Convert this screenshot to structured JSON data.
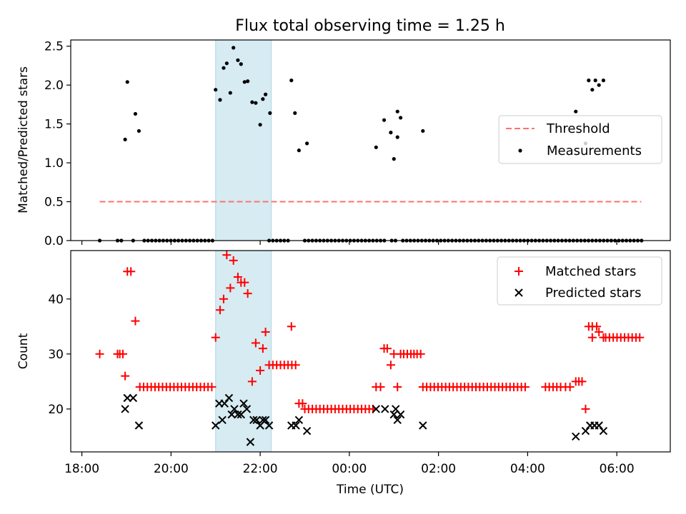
{
  "chart_data": [
    {
      "type": "scatter",
      "title": "Flux total observing time = 1.25 h",
      "xlabel": "",
      "ylabel": "Matched/Predicted stars",
      "ylim": [
        0,
        2.58
      ],
      "yticks": [
        0.0,
        0.5,
        1.0,
        1.5,
        2.0,
        2.5
      ],
      "ytick_labels": [
        "0.0",
        "0.5",
        "1.0",
        "1.5",
        "2.0",
        "2.5"
      ],
      "legend_position": "center-right",
      "highlight_span": {
        "x0": 21.0,
        "x1": 22.25,
        "color": "#add8e6"
      },
      "threshold": {
        "name": "Threshold",
        "x0": 18.4,
        "x1": 30.55,
        "y": 0.5,
        "color": "#ff7070",
        "style": "dashed"
      },
      "measurements": {
        "name": "Measurements",
        "color": "#000000",
        "nonzero": [
          [
            18.97,
            1.3
          ],
          [
            19.02,
            2.04
          ],
          [
            19.2,
            1.63
          ],
          [
            19.28,
            1.41
          ],
          [
            21.0,
            1.94
          ],
          [
            21.1,
            1.81
          ],
          [
            21.18,
            2.22
          ],
          [
            21.25,
            2.28
          ],
          [
            21.33,
            1.9
          ],
          [
            21.4,
            2.48
          ],
          [
            21.5,
            2.32
          ],
          [
            21.57,
            2.27
          ],
          [
            21.65,
            2.04
          ],
          [
            21.72,
            2.05
          ],
          [
            21.82,
            1.78
          ],
          [
            21.9,
            1.77
          ],
          [
            22.0,
            1.49
          ],
          [
            22.06,
            1.82
          ],
          [
            22.12,
            1.88
          ],
          [
            22.22,
            1.64
          ],
          [
            22.7,
            2.06
          ],
          [
            22.78,
            1.64
          ],
          [
            22.87,
            1.16
          ],
          [
            23.05,
            1.25
          ],
          [
            24.6,
            1.2
          ],
          [
            24.78,
            1.55
          ],
          [
            24.93,
            1.39
          ],
          [
            25.0,
            1.05
          ],
          [
            25.08,
            1.33
          ],
          [
            25.15,
            1.58
          ],
          [
            25.65,
            1.41
          ],
          [
            25.08,
            1.66
          ],
          [
            29.08,
            1.66
          ],
          [
            29.3,
            1.25
          ],
          [
            29.37,
            2.06
          ],
          [
            29.45,
            1.94
          ],
          [
            29.52,
            2.06
          ],
          [
            29.6,
            2.0
          ],
          [
            29.7,
            2.06
          ]
        ],
        "zero_ranges": [
          [
            18.4,
            18.4
          ],
          [
            18.8,
            18.95
          ],
          [
            19.15,
            19.15
          ],
          [
            19.4,
            21.0
          ],
          [
            22.2,
            22.65
          ],
          [
            23.0,
            24.85
          ],
          [
            24.95,
            25.05
          ],
          [
            25.2,
            30.6
          ]
        ]
      }
    },
    {
      "type": "scatter",
      "title": "",
      "xlabel": "Time (UTC)",
      "ylabel": "Count",
      "ylim": [
        12.2,
        48.8
      ],
      "yticks": [
        20,
        30,
        40
      ],
      "ytick_labels": [
        "20",
        "30",
        "40"
      ],
      "xlim": [
        17.75,
        31.2
      ],
      "xticks": [
        18,
        20,
        22,
        24,
        26,
        28,
        30
      ],
      "xtick_labels": [
        "18:00",
        "20:00",
        "22:00",
        "00:00",
        "02:00",
        "04:00",
        "06:00"
      ],
      "legend_position": "top-right",
      "highlight_span": {
        "x0": 21.0,
        "x1": 22.25,
        "color": "#add8e6"
      },
      "series": [
        {
          "name": "Matched stars",
          "marker": "+",
          "color": "#ff0000",
          "points": [
            [
              18.4,
              30
            ],
            [
              18.8,
              30
            ],
            [
              18.85,
              30
            ],
            [
              18.92,
              30
            ],
            [
              18.97,
              26
            ],
            [
              19.02,
              45
            ],
            [
              19.1,
              45
            ],
            [
              19.2,
              36
            ],
            [
              21.0,
              33
            ],
            [
              21.1,
              38
            ],
            [
              21.18,
              40
            ],
            [
              21.25,
              48
            ],
            [
              21.33,
              42
            ],
            [
              21.4,
              47
            ],
            [
              21.5,
              44
            ],
            [
              21.57,
              43
            ],
            [
              21.65,
              43
            ],
            [
              21.72,
              41
            ],
            [
              21.82,
              25
            ],
            [
              21.9,
              32
            ],
            [
              22.0,
              27
            ],
            [
              22.06,
              31
            ],
            [
              22.12,
              34
            ],
            [
              22.7,
              35
            ],
            [
              22.87,
              21
            ],
            [
              22.95,
              21
            ],
            [
              24.6,
              24
            ],
            [
              24.7,
              24
            ],
            [
              24.78,
              31
            ],
            [
              24.85,
              31
            ],
            [
              24.93,
              28
            ],
            [
              25.0,
              30
            ],
            [
              25.08,
              24
            ],
            [
              25.15,
              30
            ],
            [
              25.22,
              30
            ],
            [
              25.3,
              30
            ],
            [
              25.38,
              30
            ],
            [
              25.45,
              30
            ],
            [
              25.52,
              30
            ],
            [
              25.6,
              30
            ],
            [
              28.85,
              24
            ],
            [
              28.95,
              24
            ],
            [
              29.08,
              25
            ],
            [
              29.15,
              25
            ],
            [
              29.22,
              25
            ],
            [
              29.3,
              20
            ],
            [
              29.37,
              35
            ],
            [
              29.45,
              35
            ],
            [
              29.45,
              33
            ],
            [
              29.55,
              35
            ],
            [
              29.6,
              34
            ],
            [
              29.7,
              33
            ]
          ],
          "flat_runs": [
            {
              "x0": 19.3,
              "x1": 20.95,
              "y": 24
            },
            {
              "x0": 22.2,
              "x1": 22.85,
              "y": 28
            },
            {
              "x0": 23.0,
              "x1": 24.55,
              "y": 20
            },
            {
              "x0": 25.65,
              "x1": 28.0,
              "y": 24
            },
            {
              "x0": 28.4,
              "x1": 28.75,
              "y": 24
            },
            {
              "x0": 29.75,
              "x1": 30.55,
              "y": 33
            }
          ]
        },
        {
          "name": "Predicted stars",
          "marker": "x",
          "color": "#000000",
          "points": [
            [
              18.97,
              20
            ],
            [
              19.02,
              22
            ],
            [
              19.15,
              22
            ],
            [
              19.28,
              17
            ],
            [
              21.0,
              17
            ],
            [
              21.08,
              21
            ],
            [
              21.15,
              18
            ],
            [
              21.2,
              21
            ],
            [
              21.3,
              22
            ],
            [
              21.36,
              19
            ],
            [
              21.42,
              20
            ],
            [
              21.5,
              19
            ],
            [
              21.57,
              19
            ],
            [
              21.63,
              21
            ],
            [
              21.7,
              20
            ],
            [
              21.78,
              14
            ],
            [
              21.85,
              18
            ],
            [
              21.92,
              18
            ],
            [
              22.0,
              17
            ],
            [
              22.06,
              18
            ],
            [
              22.12,
              18
            ],
            [
              22.2,
              17
            ],
            [
              22.7,
              17
            ],
            [
              22.8,
              17
            ],
            [
              22.87,
              18
            ],
            [
              23.05,
              16
            ],
            [
              24.6,
              20
            ],
            [
              24.8,
              20
            ],
            [
              25.0,
              19
            ],
            [
              25.04,
              20
            ],
            [
              25.08,
              18
            ],
            [
              25.15,
              19
            ],
            [
              25.65,
              17
            ],
            [
              29.08,
              15
            ],
            [
              29.3,
              16
            ],
            [
              29.4,
              17
            ],
            [
              29.5,
              17
            ],
            [
              29.6,
              17
            ],
            [
              29.7,
              16
            ]
          ]
        }
      ]
    }
  ]
}
